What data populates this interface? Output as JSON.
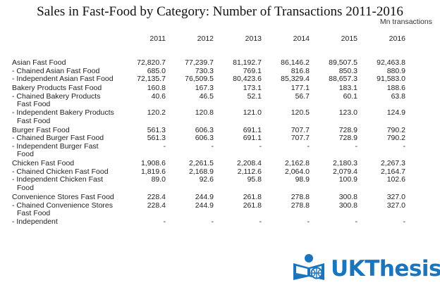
{
  "title": "Sales in Fast-Food by Category: Number of Transactions 2011-2016",
  "unit": "Mn transactions",
  "columns": [
    "2011",
    "2012",
    "2013",
    "2014",
    "2015",
    "2016"
  ],
  "rows": [
    {
      "label": "Asian Fast Food",
      "values": [
        "72,820.7",
        "77,239.7",
        "81,192.7",
        "86,146.2",
        "89,507.5",
        "92,463.8"
      ]
    },
    {
      "label": "- Chained Asian Fast Food",
      "values": [
        "685.0",
        "730.3",
        "769.1",
        "816.8",
        "850.3",
        "880.9"
      ]
    },
    {
      "label": "- Independent Asian Fast Food",
      "values": [
        "72,135.7",
        "76,509.5",
        "80,423.6",
        "85,329.4",
        "88,657.3",
        "91,583.0"
      ]
    },
    {
      "label": "Bakery Products Fast Food",
      "values": [
        "160.8",
        "167.3",
        "173.1",
        "177.1",
        "183.1",
        "188.6"
      ]
    },
    {
      "label": "- Chained Bakery Products Fast Food",
      "values": [
        "40.6",
        "46.5",
        "52.1",
        "56.7",
        "60.1",
        "63.8"
      ]
    },
    {
      "label": "- Independent Bakery Products Fast Food",
      "values": [
        "120.2",
        "120.8",
        "121.0",
        "120.5",
        "123.0",
        "124.9"
      ]
    },
    {
      "label": "Burger Fast Food",
      "values": [
        "561.3",
        "606.3",
        "691.1",
        "707.7",
        "728.9",
        "790.2"
      ]
    },
    {
      "label": "- Chained Burger Fast Food",
      "values": [
        "561.3",
        "606.3",
        "691.1",
        "707.7",
        "728.9",
        "790.2"
      ]
    },
    {
      "label": "- Independent Burger Fast Food",
      "values": [
        "-",
        "-",
        "-",
        "-",
        "-",
        "-"
      ]
    },
    {
      "label": "Chicken Fast Food",
      "values": [
        "1,908.6",
        "2,261.5",
        "2,208.4",
        "2,162.8",
        "2,180.3",
        "2,267.3"
      ]
    },
    {
      "label": "- Chained Chicken Fast Food",
      "values": [
        "1,819.6",
        "2,168.9",
        "2,112.6",
        "2,064.0",
        "2,079.4",
        "2,164.7"
      ]
    },
    {
      "label": "- Independent Chicken Fast Food",
      "values": [
        "89.0",
        "92.6",
        "95.8",
        "98.9",
        "100.9",
        "102.6"
      ]
    },
    {
      "label": "Convenience Stores Fast Food",
      "values": [
        "228.4",
        "244.9",
        "261.8",
        "278.8",
        "300.8",
        "327.0"
      ]
    },
    {
      "label": "- Chained Convenience Stores Fast Food",
      "values": [
        "228.4",
        "244.9",
        "261.8",
        "278.8",
        "300.8",
        "327.0"
      ]
    },
    {
      "label": "- Independent",
      "values": [
        "-",
        "-",
        "-",
        "-",
        "-",
        "-"
      ]
    }
  ],
  "watermark": {
    "prefix": "UK",
    "suffix": "Thesis",
    "color": "#1b75bc",
    "icon": "book-reader-icon"
  }
}
